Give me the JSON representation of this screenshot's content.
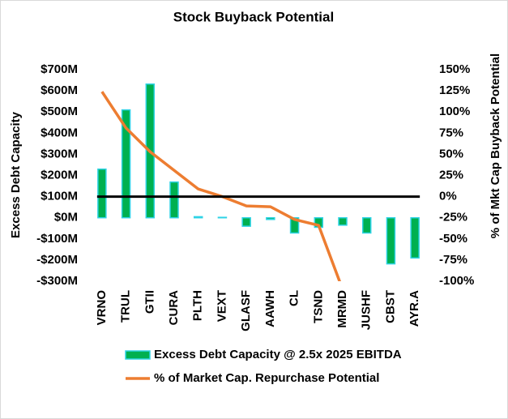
{
  "chart_data": {
    "type": "bar-line",
    "title": "Stock Buyback Potential",
    "y_label": "Excess Debt Capacity",
    "y2_label": "% of Mkt Cap Buyback Potential",
    "categories": [
      "VRNO",
      "TRUL",
      "GTII",
      "CURA",
      "PLTH",
      "VEXT",
      "GLASF",
      "AAWH",
      "CL",
      "TSND",
      "MRMD",
      "JUSHF",
      "CBST",
      "AYR.A"
    ],
    "series": [
      {
        "name": "Excess Debt Capacity @ 2.5x 2025 EBITDA",
        "type": "bar",
        "color": "#00b050",
        "edge_color": "#2ed3e6",
        "values": [
          230,
          510,
          632,
          169,
          5,
          2,
          -40,
          -8,
          -72,
          -45,
          -35,
          -72,
          -218,
          -190
        ]
      },
      {
        "name": "% of Market Cap. Repurchase Potential",
        "type": "line",
        "axis": "y2",
        "color": "#ed7d31",
        "values": [
          124,
          81,
          53,
          31,
          9,
          0,
          -11,
          -12,
          -27,
          -34,
          -110,
          null,
          null,
          null
        ]
      }
    ],
    "ylim": [
      -300,
      700
    ],
    "yticks": [
      {
        "value": -300,
        "label": "-$300M"
      },
      {
        "value": -200,
        "label": "-$200M"
      },
      {
        "value": -100,
        "label": "-$100M"
      },
      {
        "value": 0,
        "label": "$0M"
      },
      {
        "value": 100,
        "label": "$100M"
      },
      {
        "value": 200,
        "label": "$200M"
      },
      {
        "value": 300,
        "label": "$300M"
      },
      {
        "value": 400,
        "label": "$400M"
      },
      {
        "value": 500,
        "label": "$500M"
      },
      {
        "value": 600,
        "label": "$600M"
      },
      {
        "value": 700,
        "label": "$700M"
      }
    ],
    "y2lim": [
      -100,
      150
    ],
    "y2ticks": [
      {
        "value": -100,
        "label": "-100%"
      },
      {
        "value": -75,
        "label": "-75%"
      },
      {
        "value": -50,
        "label": "-50%"
      },
      {
        "value": -25,
        "label": "-25%"
      },
      {
        "value": 0,
        "label": "0%"
      },
      {
        "value": 25,
        "label": "25%"
      },
      {
        "value": 50,
        "label": "50%"
      },
      {
        "value": 75,
        "label": "75%"
      },
      {
        "value": 100,
        "label": "100%"
      },
      {
        "value": 125,
        "label": "125%"
      },
      {
        "value": 150,
        "label": "150%"
      }
    ],
    "y2_reference": 0,
    "reference_color": "#000000",
    "grid": false
  }
}
